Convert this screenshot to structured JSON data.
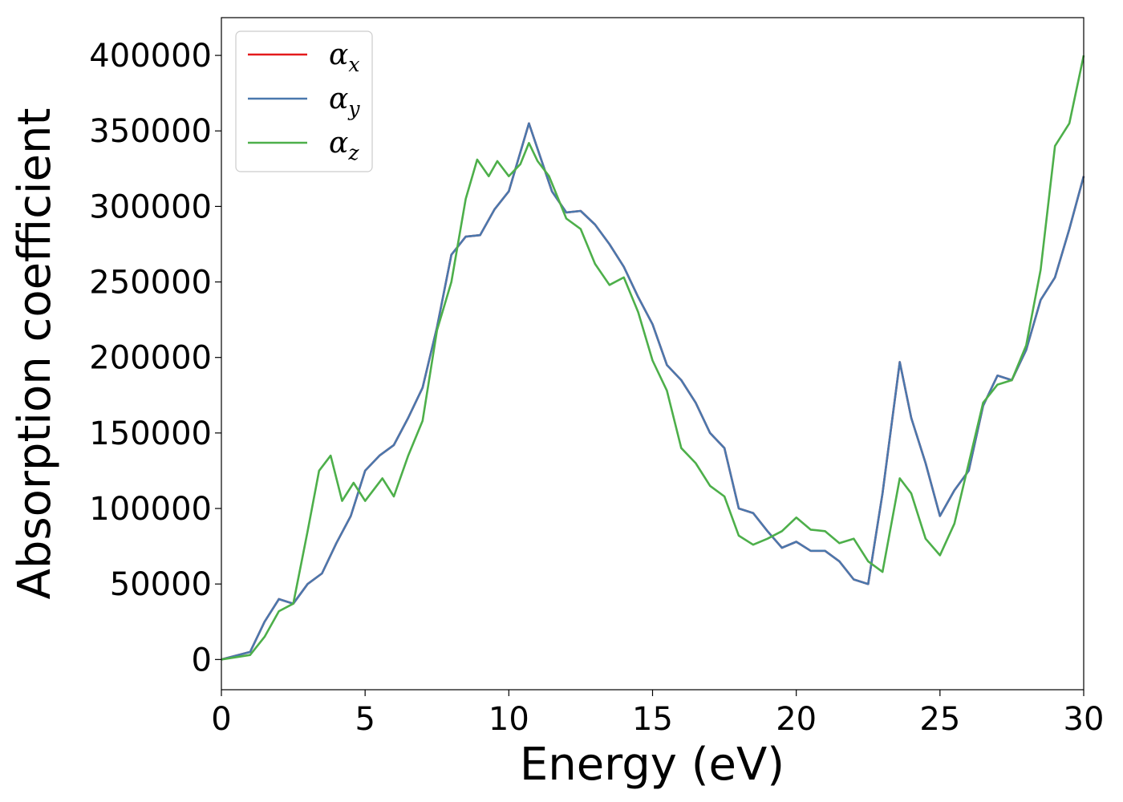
{
  "chart_data": {
    "type": "line",
    "title": "",
    "xlabel": "Energy (eV)",
    "ylabel": "Absorption coefficient",
    "xlim": [
      0,
      30
    ],
    "ylim": [
      -20000,
      425000
    ],
    "xticks": [
      0,
      5,
      10,
      15,
      20,
      25,
      30
    ],
    "xtick_labels": [
      "0",
      "5",
      "10",
      "15",
      "20",
      "25",
      "30"
    ],
    "yticks": [
      0,
      50000,
      100000,
      150000,
      200000,
      250000,
      300000,
      350000,
      400000
    ],
    "ytick_labels": [
      "0",
      "50000",
      "100000",
      "150000",
      "200000",
      "250000",
      "300000",
      "350000",
      "400000"
    ],
    "grid": false,
    "legend_position": "top-left",
    "series": [
      {
        "name": "α",
        "subscript": "x",
        "color": "#e41a1c",
        "x": [
          0,
          1,
          1.5,
          2,
          2.5,
          3,
          3.5,
          4,
          4.5,
          5,
          5.5,
          6,
          6.5,
          7,
          7.5,
          8,
          8.5,
          9,
          9.5,
          10,
          10.7,
          11.5,
          12,
          12.5,
          13,
          13.5,
          14,
          14.5,
          15,
          15.5,
          16,
          16.5,
          17,
          17.5,
          18,
          18.5,
          19,
          19.5,
          20,
          20.5,
          21,
          21.5,
          22,
          22.5,
          23,
          23.6,
          24,
          24.5,
          25,
          25.5,
          26,
          26.5,
          27,
          27.5,
          28,
          28.5,
          29,
          29.5,
          30
        ],
        "y": [
          0,
          5000,
          25000,
          40000,
          37000,
          50000,
          57000,
          77000,
          95000,
          125000,
          135000,
          142000,
          160000,
          180000,
          220000,
          268000,
          280000,
          281000,
          298000,
          310000,
          355000,
          310000,
          296000,
          297000,
          288000,
          275000,
          260000,
          240000,
          222000,
          195000,
          185000,
          170000,
          150000,
          140000,
          100000,
          97000,
          85000,
          74000,
          78000,
          72000,
          72000,
          65000,
          53000,
          50000,
          110000,
          197000,
          160000,
          130000,
          95000,
          112000,
          125000,
          168000,
          188000,
          185000,
          205000,
          238000,
          253000,
          285000,
          320000
        ]
      },
      {
        "name": "α",
        "subscript": "y",
        "color": "#4a78ad",
        "x": [
          0,
          1,
          1.5,
          2,
          2.5,
          3,
          3.5,
          4,
          4.5,
          5,
          5.5,
          6,
          6.5,
          7,
          7.5,
          8,
          8.5,
          9,
          9.5,
          10,
          10.7,
          11.5,
          12,
          12.5,
          13,
          13.5,
          14,
          14.5,
          15,
          15.5,
          16,
          16.5,
          17,
          17.5,
          18,
          18.5,
          19,
          19.5,
          20,
          20.5,
          21,
          21.5,
          22,
          22.5,
          23,
          23.6,
          24,
          24.5,
          25,
          25.5,
          26,
          26.5,
          27,
          27.5,
          28,
          28.5,
          29,
          29.5,
          30
        ],
        "y": [
          0,
          5000,
          25000,
          40000,
          37000,
          50000,
          57000,
          77000,
          95000,
          125000,
          135000,
          142000,
          160000,
          180000,
          220000,
          268000,
          280000,
          281000,
          298000,
          310000,
          355000,
          310000,
          296000,
          297000,
          288000,
          275000,
          260000,
          240000,
          222000,
          195000,
          185000,
          170000,
          150000,
          140000,
          100000,
          97000,
          85000,
          74000,
          78000,
          72000,
          72000,
          65000,
          53000,
          50000,
          110000,
          197000,
          160000,
          130000,
          95000,
          112000,
          125000,
          168000,
          188000,
          185000,
          205000,
          238000,
          253000,
          285000,
          320000
        ]
      },
      {
        "name": "α",
        "subscript": "z",
        "color": "#4daf4a",
        "x": [
          0,
          1,
          1.5,
          2,
          2.5,
          3,
          3.4,
          3.8,
          4.2,
          4.6,
          5,
          5.6,
          6,
          6.5,
          7,
          7.5,
          8,
          8.5,
          8.9,
          9.3,
          9.6,
          10,
          10.4,
          10.7,
          11,
          11.4,
          12,
          12.5,
          13,
          13.5,
          14,
          14.5,
          15,
          15.5,
          16,
          16.5,
          17,
          17.5,
          18,
          18.5,
          19,
          19.5,
          20,
          20.5,
          21,
          21.5,
          22,
          22.5,
          23,
          23.6,
          24,
          24.5,
          25,
          25.5,
          26,
          26.5,
          27,
          27.5,
          28,
          28.5,
          29,
          29.5,
          30
        ],
        "y": [
          0,
          3000,
          15000,
          32000,
          37000,
          85000,
          125000,
          135000,
          105000,
          117000,
          105000,
          120000,
          108000,
          135000,
          158000,
          218000,
          250000,
          305000,
          331000,
          320000,
          330000,
          320000,
          328000,
          342000,
          330000,
          320000,
          292000,
          285000,
          262000,
          248000,
          253000,
          230000,
          198000,
          178000,
          140000,
          130000,
          115000,
          108000,
          82000,
          76000,
          80000,
          85000,
          94000,
          86000,
          85000,
          77000,
          80000,
          65000,
          58000,
          120000,
          110000,
          80000,
          69000,
          90000,
          130000,
          170000,
          182000,
          185000,
          208000,
          258000,
          340000,
          355000,
          400000
        ]
      }
    ]
  }
}
